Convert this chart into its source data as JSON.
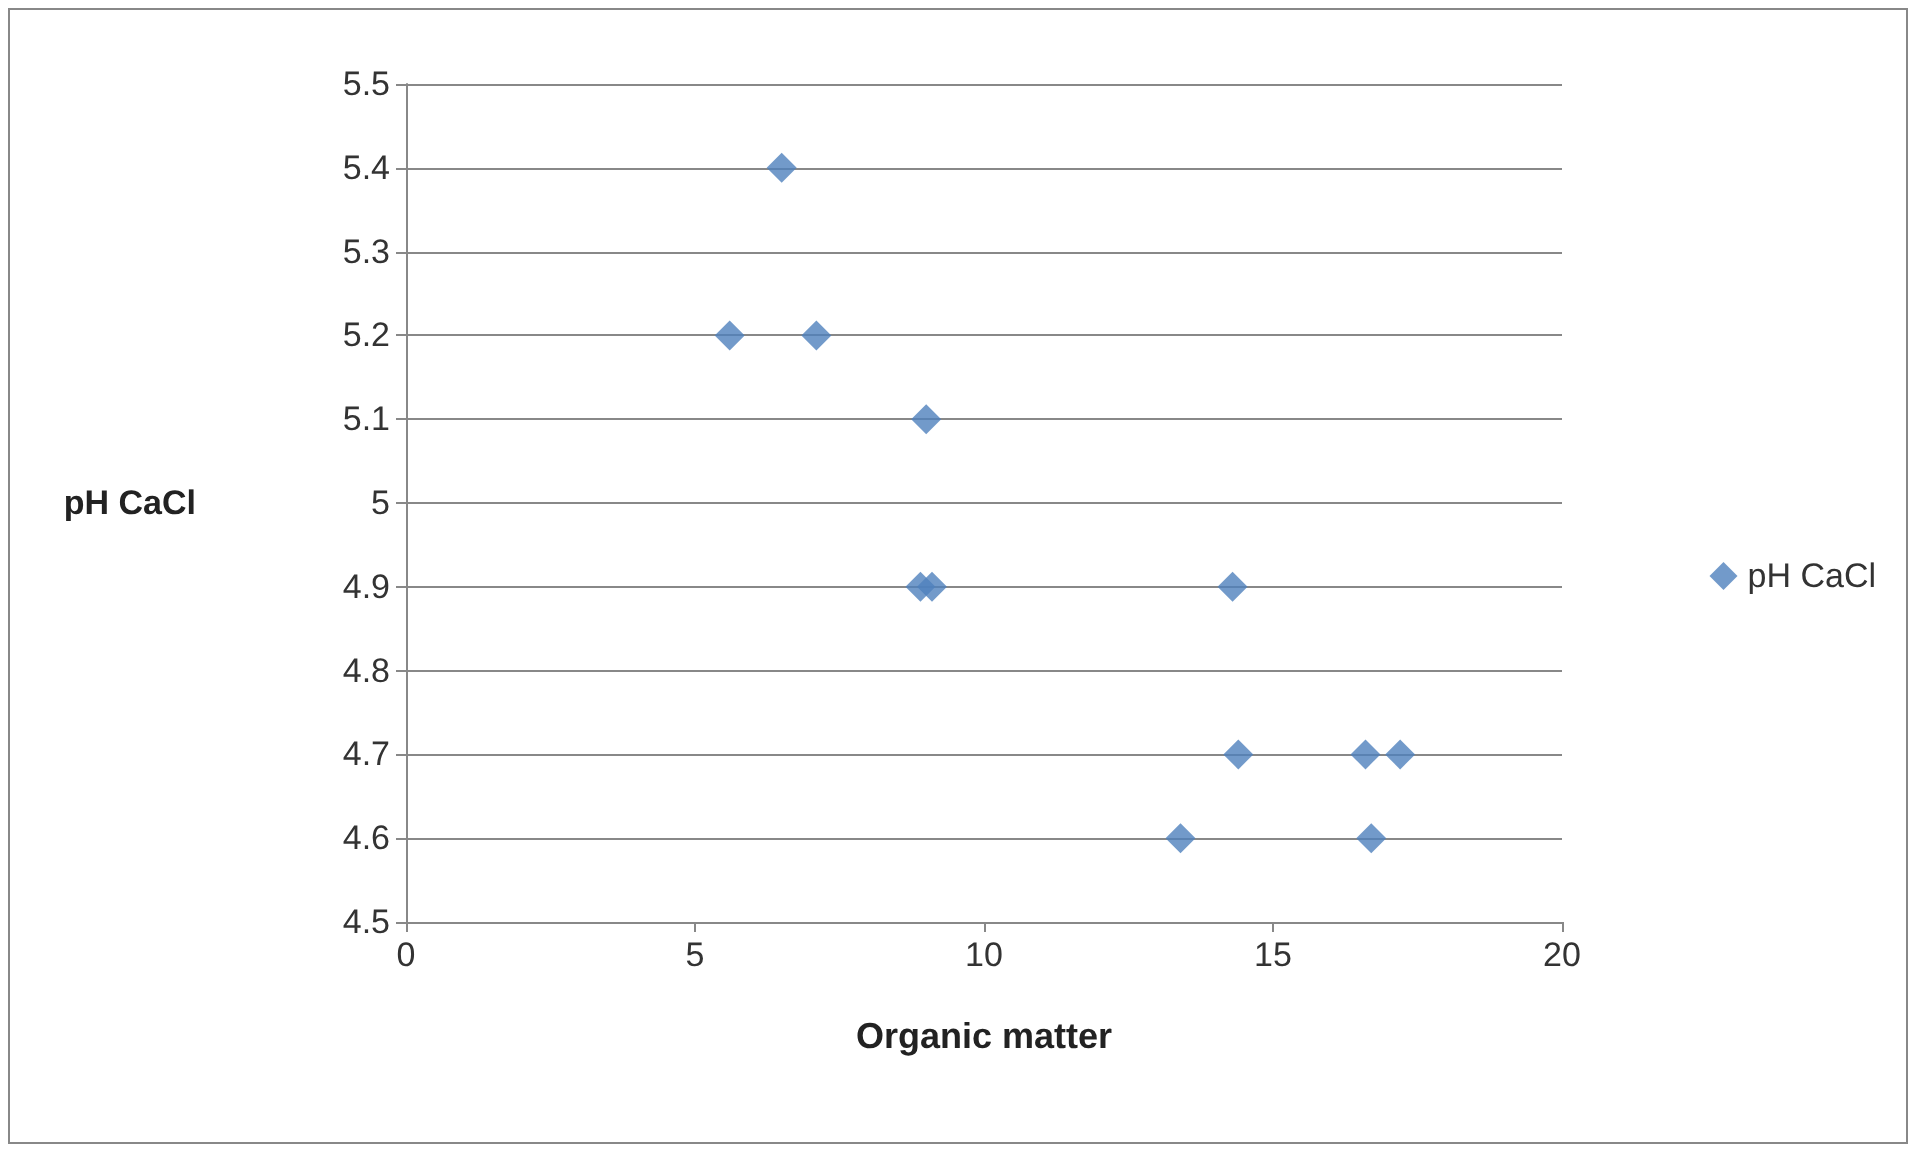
{
  "chart_data": {
    "type": "scatter",
    "xlabel": "Organic matter",
    "ylabel": "pH CaCl",
    "x": [
      6.5,
      5.6,
      7.1,
      9.0,
      8.9,
      9.1,
      14.3,
      14.4,
      16.6,
      17.2,
      13.4,
      16.7
    ],
    "series": [
      {
        "name": "pH CaCl",
        "color": "#4f81bd",
        "values": [
          5.4,
          5.2,
          5.2,
          5.1,
          4.9,
          4.9,
          4.9,
          4.7,
          4.7,
          4.7,
          4.6,
          4.6
        ]
      }
    ],
    "xlim": [
      0,
      20
    ],
    "xticks": [
      0,
      5,
      10,
      15,
      20
    ],
    "ylim": [
      4.5,
      5.5
    ],
    "yticks": [
      4.5,
      4.6,
      4.7,
      4.8,
      4.9,
      5,
      5.1,
      5.2,
      5.3,
      5.4,
      5.5
    ],
    "grid": "y",
    "legend": "right",
    "marker": "diamond"
  }
}
